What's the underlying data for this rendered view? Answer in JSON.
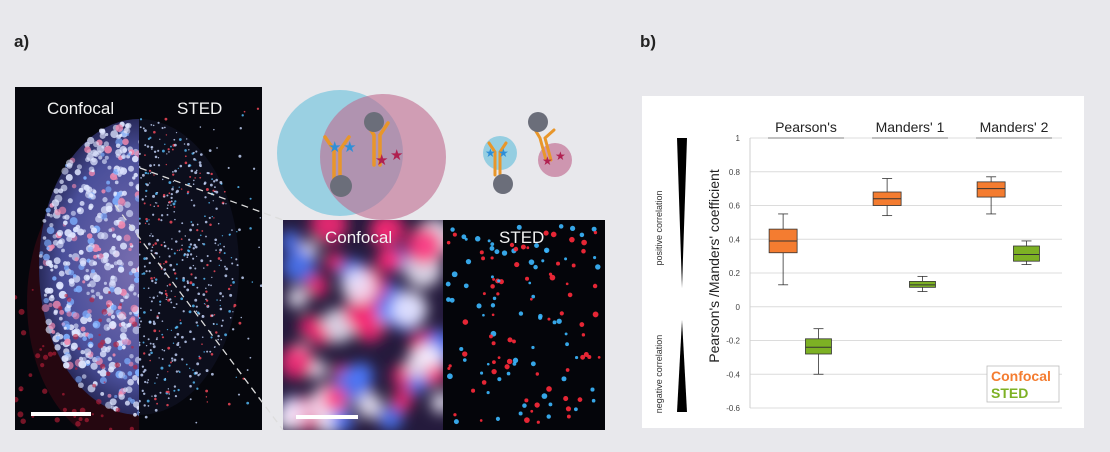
{
  "panels": {
    "a_label": "a)",
    "b_label": "b)"
  },
  "images": {
    "big_confocal_label": "Confocal",
    "big_sted_label": "STED",
    "zoom_confocal_label": "Confocal",
    "zoom_sted_label": "STED"
  },
  "colors": {
    "confocal": "#f47c30",
    "sted": "#7db124",
    "blue_channel": "#6fb8e6",
    "red_channel": "#d45080",
    "antibody": "#e8962a"
  },
  "icons": [
    "antibody-icon",
    "blue-star-fluorophore-icon",
    "red-star-fluorophore-icon"
  ],
  "chart_data": {
    "type": "box",
    "categories": [
      "Pearson's",
      "Manders' 1",
      "Manders' 2"
    ],
    "ylabel": "Pearson's /Manders' coefficient",
    "ylim": [
      -0.6,
      1.0
    ],
    "yticks": [
      1,
      0.8,
      0.6,
      0.4,
      0.2,
      0,
      -0.2,
      -0.4,
      -0.6
    ],
    "grid": true,
    "legend_position": "bottom-right",
    "side_labels": {
      "positive": "positive correlation",
      "negative": "negative correlation"
    },
    "series": [
      {
        "name": "Confocal",
        "boxes": [
          {
            "category": "Pearson's",
            "min": 0.13,
            "q1": 0.32,
            "median": 0.39,
            "q3": 0.46,
            "max": 0.55
          },
          {
            "category": "Manders' 1",
            "min": 0.54,
            "q1": 0.6,
            "median": 0.64,
            "q3": 0.68,
            "max": 0.76
          },
          {
            "category": "Manders' 2",
            "min": 0.55,
            "q1": 0.65,
            "median": 0.7,
            "q3": 0.74,
            "max": 0.77
          }
        ]
      },
      {
        "name": "STED",
        "boxes": [
          {
            "category": "Pearson's",
            "min": -0.4,
            "q1": -0.28,
            "median": -0.24,
            "q3": -0.19,
            "max": -0.13
          },
          {
            "category": "Manders' 1",
            "min": 0.09,
            "q1": 0.115,
            "median": 0.13,
            "q3": 0.15,
            "max": 0.18
          },
          {
            "category": "Manders' 2",
            "min": 0.25,
            "q1": 0.27,
            "median": 0.31,
            "q3": 0.36,
            "max": 0.39
          }
        ]
      }
    ]
  }
}
